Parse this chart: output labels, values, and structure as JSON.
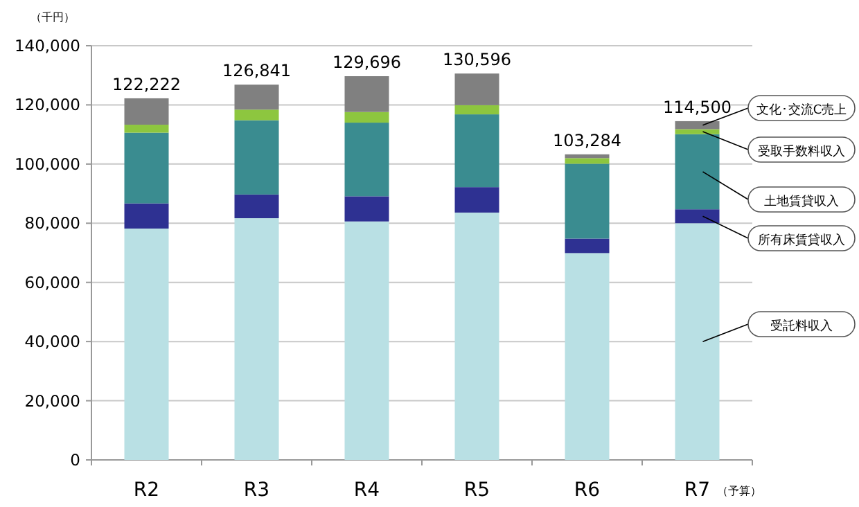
{
  "chart_data": {
    "type": "bar",
    "stacked": true,
    "ylabel": "（千円）",
    "categories": [
      "R2",
      "R3",
      "R4",
      "R5",
      "R6",
      "R7"
    ],
    "series": [
      {
        "name": "受託料収入",
        "color": "#b9e0e4",
        "values": [
          78200,
          81700,
          80600,
          83600,
          69900,
          80000
        ]
      },
      {
        "name": "所有床賃貸収入",
        "color": "#2e3192",
        "values": [
          8500,
          8000,
          8500,
          8600,
          4900,
          4700
        ]
      },
      {
        "name": "土地賃貸収入",
        "color": "#3a8c90",
        "values": [
          23900,
          25100,
          24900,
          24600,
          25300,
          25400
        ]
      },
      {
        "name": "受取手数料収入",
        "color": "#8dc63f",
        "values": [
          2700,
          3600,
          3600,
          3100,
          1900,
          1700
        ]
      },
      {
        "name": "文化･交流C売上",
        "color": "#808080",
        "values": [
          8922,
          8441,
          12096,
          10696,
          1284,
          2700
        ]
      }
    ],
    "totals": [
      "122,222",
      "126,841",
      "129,696",
      "130,596",
      "103,284",
      "114,500"
    ],
    "annotations": [
      "（予算）"
    ],
    "ylim": [
      0,
      140000
    ],
    "yticks": [
      {
        "value": 0,
        "label": "0"
      },
      {
        "value": 20000,
        "label": "20,000"
      },
      {
        "value": 40000,
        "label": "40,000"
      },
      {
        "value": 60000,
        "label": "60,000"
      },
      {
        "value": 80000,
        "label": "80,000"
      },
      {
        "value": 100000,
        "label": "100,000"
      },
      {
        "value": 120000,
        "label": "120,000"
      },
      {
        "value": 140000,
        "label": "140,000"
      }
    ],
    "grid": "y",
    "legend": false
  }
}
